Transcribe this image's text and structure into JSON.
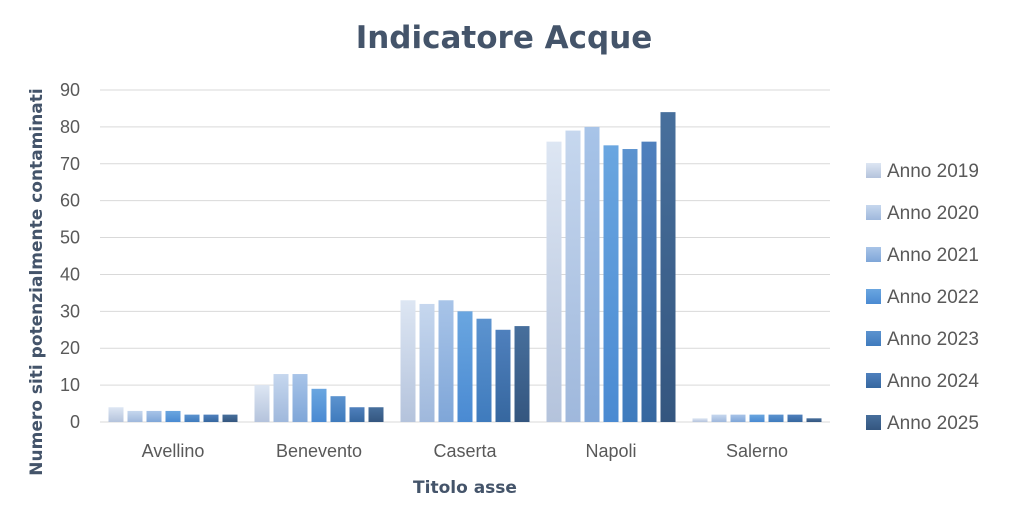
{
  "chart_data": {
    "type": "bar",
    "title": "Indicatore Acque",
    "xlabel": "Titolo asse",
    "ylabel": "Numero siti potenzialmente contaminati",
    "categories": [
      "Avellino",
      "Benevento",
      "Caserta",
      "Napoli",
      "Salerno"
    ],
    "series": [
      {
        "name": "Anno 2019",
        "values": [
          4,
          10,
          33,
          76,
          1
        ],
        "color_top": "#dde6f3",
        "color_bottom": "#b4c3dc"
      },
      {
        "name": "Anno 2020",
        "values": [
          3,
          13,
          32,
          79,
          2
        ],
        "color_top": "#c6d7ee",
        "color_bottom": "#9fb8dc"
      },
      {
        "name": "Anno 2021",
        "values": [
          3,
          13,
          33,
          80,
          2
        ],
        "color_top": "#a8c4e8",
        "color_bottom": "#7fa6d8"
      },
      {
        "name": "Anno 2022",
        "values": [
          3,
          9,
          30,
          75,
          2
        ],
        "color_top": "#6aa6e0",
        "color_bottom": "#4a8ad2"
      },
      {
        "name": "Anno 2023",
        "values": [
          2,
          7,
          28,
          74,
          2
        ],
        "color_top": "#5c93cf",
        "color_bottom": "#3f7bbd"
      },
      {
        "name": "Anno 2024",
        "values": [
          2,
          4,
          25,
          76,
          2
        ],
        "color_top": "#4f80bd",
        "color_bottom": "#36679f"
      },
      {
        "name": "Anno 2025",
        "values": [
          2,
          4,
          26,
          84,
          1
        ],
        "color_top": "#476f9c",
        "color_bottom": "#34567f"
      }
    ],
    "ylim": [
      0,
      90
    ],
    "yticks": [
      0,
      10,
      20,
      30,
      40,
      50,
      60,
      70,
      80,
      90
    ],
    "grid": true,
    "legend_position": "right"
  }
}
